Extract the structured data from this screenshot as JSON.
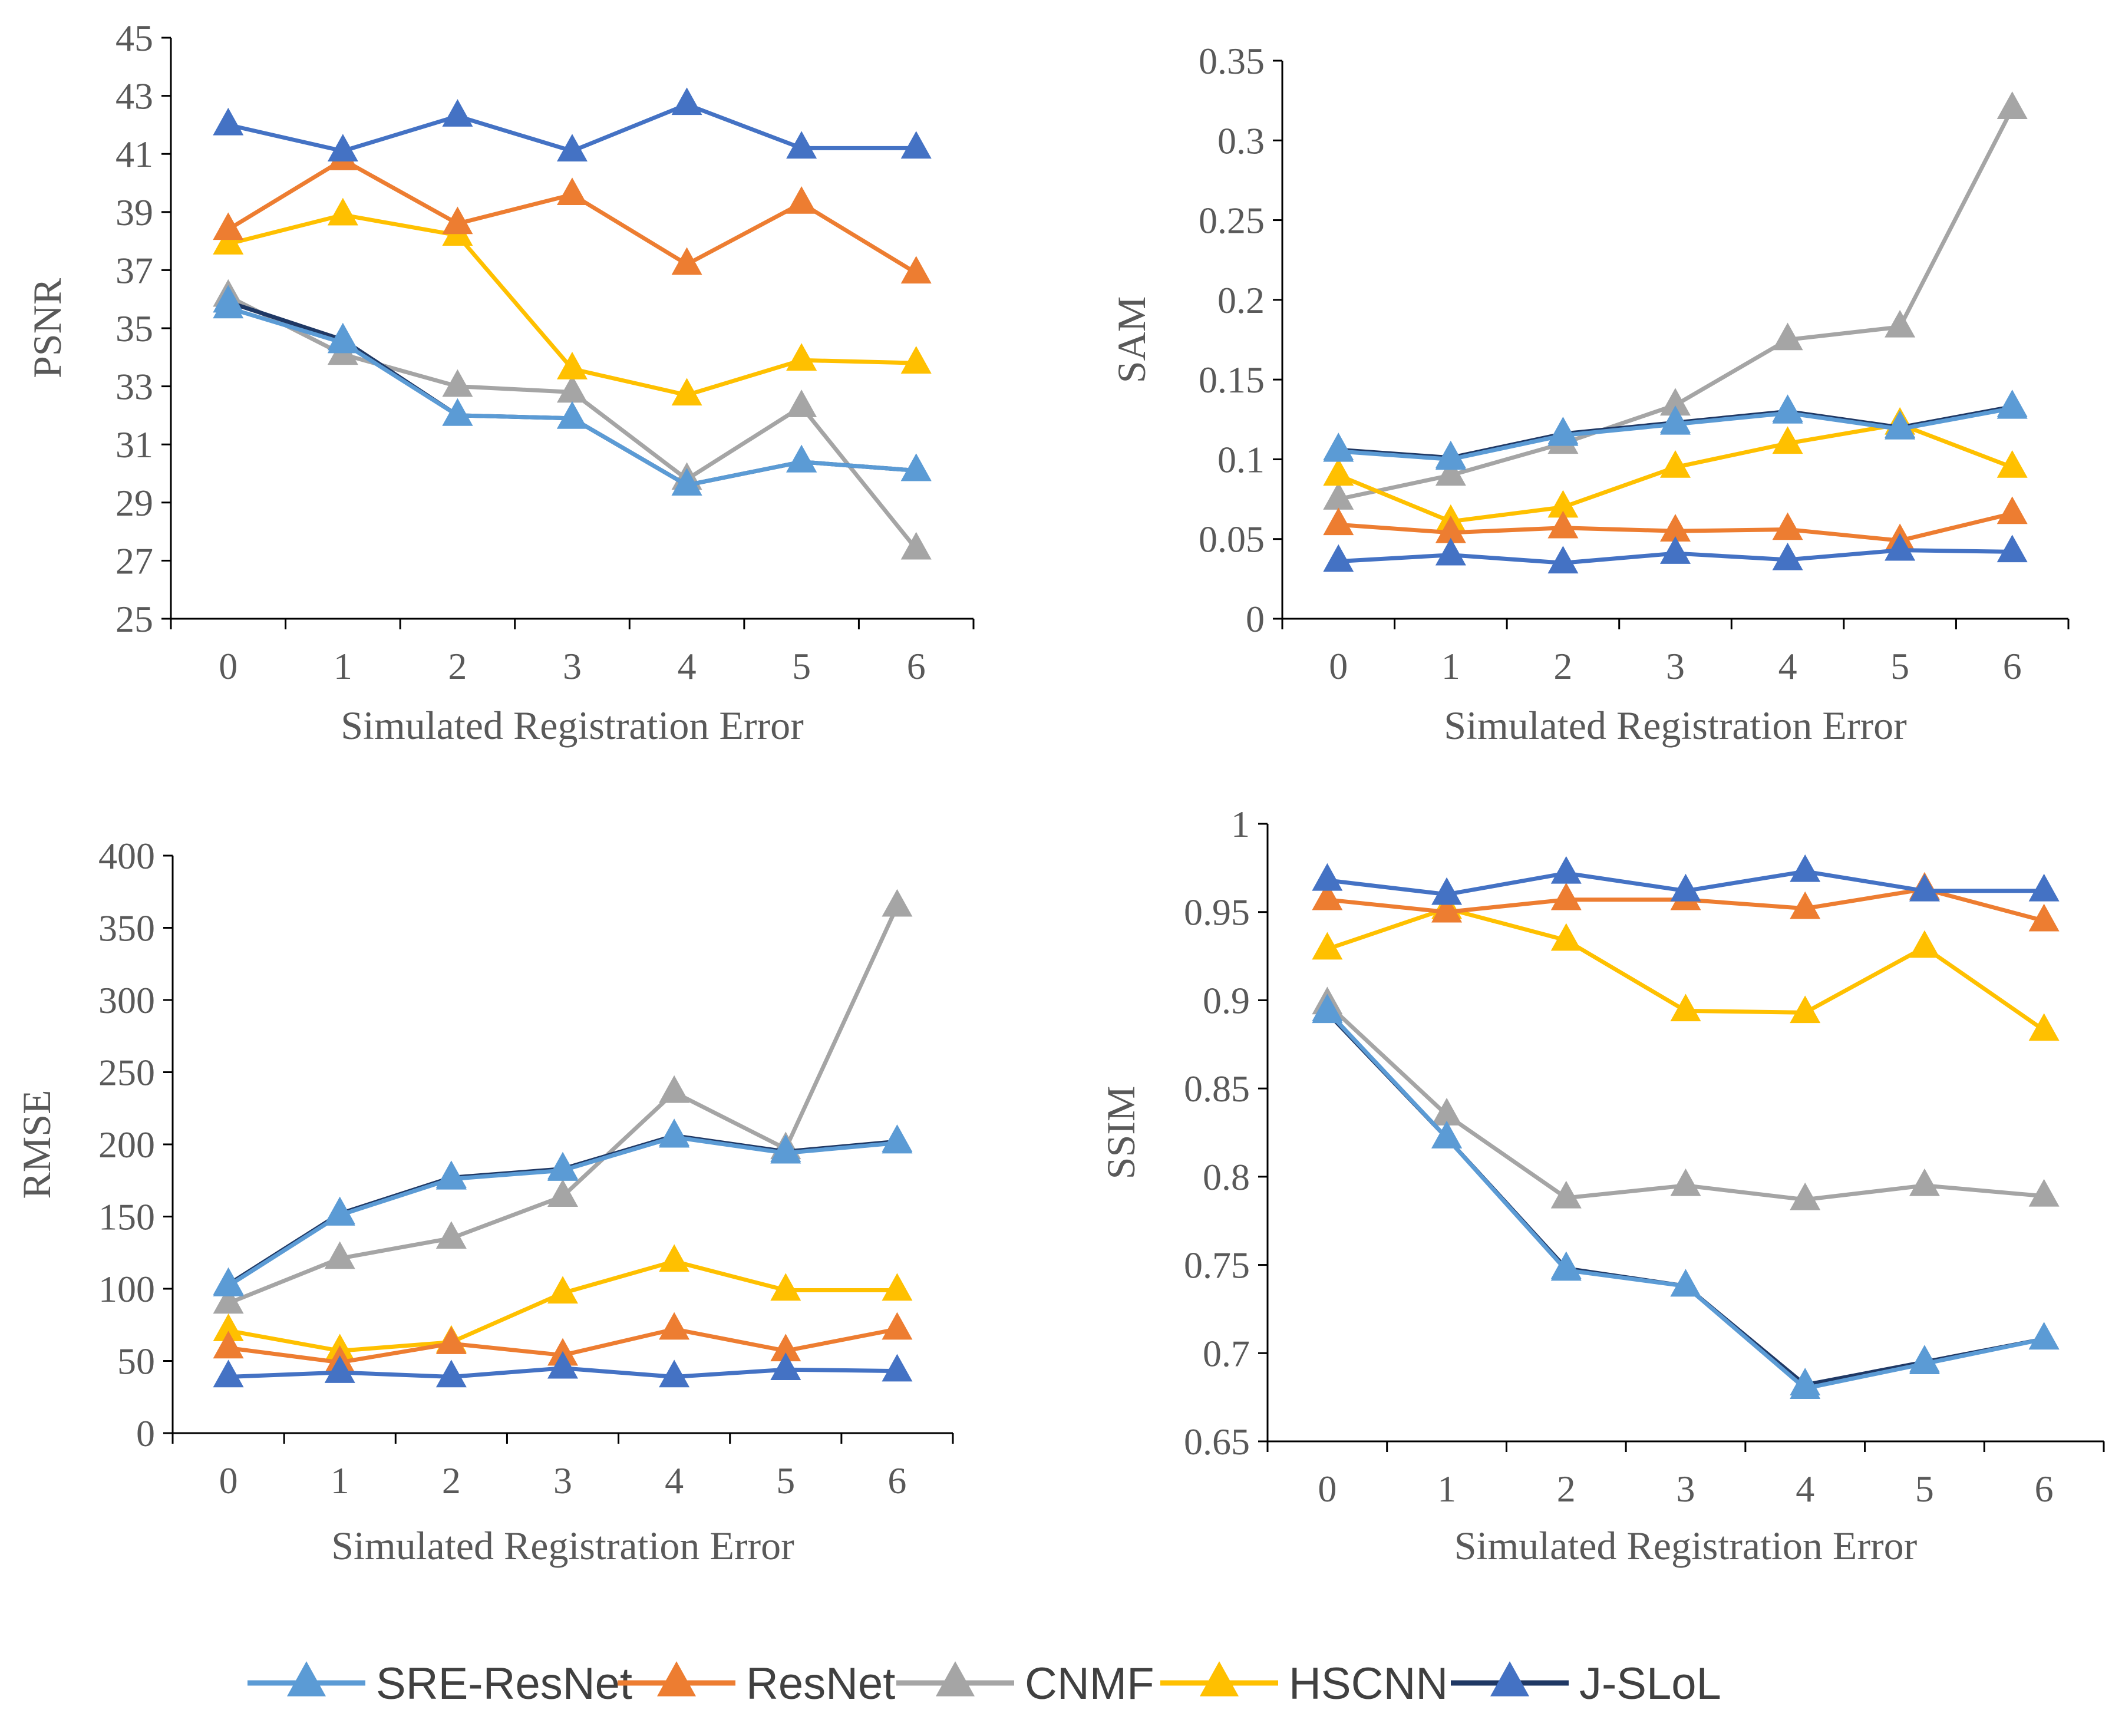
{
  "chart_data": [
    {
      "type": "line",
      "id": "psnr",
      "title": "",
      "xlabel": "Simulated Registration Error",
      "ylabel": "PSNR",
      "categories": [
        "0",
        "1",
        "2",
        "3",
        "4",
        "5",
        "6"
      ],
      "ylim": [
        25,
        45
      ],
      "yticks": [
        "25",
        "27",
        "29",
        "31",
        "33",
        "35",
        "37",
        "39",
        "41",
        "43",
        "45"
      ],
      "series": [
        {
          "name": "CNMF",
          "values": [
            36.1,
            34.1,
            33.0,
            32.8,
            29.8,
            32.3,
            27.4
          ]
        },
        {
          "name": "J-SLoL",
          "values": [
            35.9,
            34.6,
            32.0,
            31.9,
            29.6,
            30.4,
            30.1
          ]
        },
        {
          "name": "SRE-ResNet",
          "values": [
            35.7,
            34.5,
            32.0,
            31.9,
            29.6,
            30.4,
            30.1
          ]
        },
        {
          "name": "HSCNN",
          "values": [
            37.9,
            38.9,
            38.2,
            33.6,
            32.7,
            33.9,
            33.8
          ]
        },
        {
          "name": "ResNet",
          "values": [
            38.4,
            40.8,
            38.6,
            39.6,
            37.2,
            39.3,
            36.9
          ]
        },
        {
          "name": "J-SLoL-top",
          "legend": false,
          "values": [
            42.0,
            41.1,
            42.3,
            41.1,
            42.7,
            41.2,
            41.2
          ]
        }
      ]
    },
    {
      "type": "line",
      "id": "sam",
      "title": "",
      "xlabel": "Simulated Registration Error",
      "ylabel": "SAM",
      "categories": [
        "0",
        "1",
        "2",
        "3",
        "4",
        "5",
        "6"
      ],
      "ylim": [
        0,
        0.35
      ],
      "yticks": [
        "0",
        "0.05",
        "0.1",
        "0.15",
        "0.2",
        "0.25",
        "0.3",
        "0.35"
      ],
      "series": [
        {
          "name": "CNMF",
          "values": [
            0.075,
            0.09,
            0.11,
            0.134,
            0.175,
            0.183,
            0.32
          ]
        },
        {
          "name": "HSCNN",
          "values": [
            0.09,
            0.061,
            0.07,
            0.095,
            0.11,
            0.122,
            0.095
          ]
        },
        {
          "name": "ResNet",
          "values": [
            0.059,
            0.054,
            0.057,
            0.055,
            0.056,
            0.049,
            0.066
          ]
        },
        {
          "name": "J-SLoL",
          "values": [
            0.106,
            0.101,
            0.116,
            0.123,
            0.13,
            0.12,
            0.133
          ]
        },
        {
          "name": "SRE-ResNet",
          "values": [
            0.105,
            0.1,
            0.115,
            0.122,
            0.129,
            0.119,
            0.132
          ]
        },
        {
          "name": "J-SLoL-bottom",
          "legend": false,
          "values": [
            0.036,
            0.04,
            0.035,
            0.041,
            0.037,
            0.043,
            0.042
          ]
        }
      ]
    },
    {
      "type": "line",
      "id": "rmse",
      "title": "",
      "xlabel": "Simulated Registration Error",
      "ylabel": "RMSE",
      "categories": [
        "0",
        "1",
        "2",
        "3",
        "4",
        "5",
        "6"
      ],
      "ylim": [
        0,
        400
      ],
      "yticks": [
        "0",
        "50",
        "100",
        "150",
        "200",
        "250",
        "300",
        "350",
        "400"
      ],
      "series": [
        {
          "name": "CNMF",
          "values": [
            90,
            121,
            135,
            164,
            236,
            197,
            365
          ]
        },
        {
          "name": "HSCNN",
          "values": [
            71,
            57,
            63,
            97,
            119,
            99,
            99
          ]
        },
        {
          "name": "ResNet",
          "values": [
            59,
            49,
            62,
            54,
            72,
            57,
            72
          ]
        },
        {
          "name": "J-SLoL",
          "values": [
            103,
            152,
            177,
            183,
            206,
            195,
            202
          ]
        },
        {
          "name": "SRE-ResNet",
          "values": [
            102,
            151,
            176,
            182,
            205,
            194,
            201
          ]
        },
        {
          "name": "J-SLoL-bottom",
          "legend": false,
          "values": [
            39,
            42,
            39,
            45,
            39,
            44,
            43
          ]
        }
      ]
    },
    {
      "type": "line",
      "id": "ssim",
      "title": "",
      "xlabel": "Simulated Registration Error",
      "ylabel": "SSIM",
      "categories": [
        "0",
        "1",
        "2",
        "3",
        "4",
        "5",
        "6"
      ],
      "ylim": [
        0.65,
        1
      ],
      "yticks": [
        "0.65",
        "0.7",
        "0.75",
        "0.8",
        "0.85",
        "0.9",
        "0.95",
        "1"
      ],
      "series": [
        {
          "name": "CNMF",
          "values": [
            0.898,
            0.835,
            0.788,
            0.795,
            0.787,
            0.795,
            0.789
          ]
        },
        {
          "name": "J-SLoL",
          "values": [
            0.893,
            0.822,
            0.748,
            0.738,
            0.682,
            0.695,
            0.708
          ]
        },
        {
          "name": "SRE-ResNet",
          "values": [
            0.894,
            0.822,
            0.747,
            0.738,
            0.68,
            0.694,
            0.708
          ]
        },
        {
          "name": "HSCNN",
          "values": [
            0.929,
            0.952,
            0.934,
            0.894,
            0.893,
            0.93,
            0.883
          ]
        },
        {
          "name": "ResNet",
          "values": [
            0.957,
            0.95,
            0.957,
            0.957,
            0.952,
            0.963,
            0.945
          ]
        },
        {
          "name": "J-SLoL-top",
          "legend": false,
          "values": [
            0.968,
            0.96,
            0.972,
            0.962,
            0.973,
            0.962,
            0.962
          ]
        }
      ]
    }
  ],
  "colors": {
    "SRE-ResNet": "#5B9BD5",
    "ResNet": "#ED7D31",
    "CNMF": "#A5A5A5",
    "HSCNN": "#FFC000",
    "J-SLoL": "#1F3864",
    "J-SLoL-top": "#4472C4",
    "J-SLoL-bottom": "#4472C4",
    "axis": "#000000",
    "text": "#595959"
  },
  "markers": {
    "SRE-ResNet": "#5B9BD5",
    "ResNet": "#ED7D31",
    "CNMF": "#A5A5A5",
    "HSCNN": "#FFC000",
    "J-SLoL": "#5B9BD5",
    "J-SLoL-top": "#4472C4",
    "J-SLoL-bottom": "#4472C4"
  },
  "legend": [
    {
      "name": "SRE-ResNet",
      "line": "#5B9BD5",
      "marker": "#5B9BD5"
    },
    {
      "name": "ResNet",
      "line": "#ED7D31",
      "marker": "#ED7D31"
    },
    {
      "name": "CNMF",
      "line": "#A5A5A5",
      "marker": "#A5A5A5"
    },
    {
      "name": "HSCNN",
      "line": "#FFC000",
      "marker": "#FFC000"
    },
    {
      "name": "J-SLoL",
      "line": "#1F3864",
      "marker": "#4472C4"
    }
  ],
  "marker_shape": "triangle"
}
